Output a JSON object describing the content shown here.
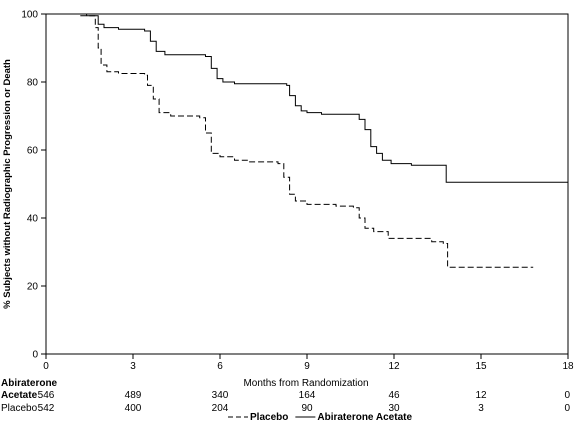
{
  "chart_data": {
    "type": "line",
    "xlabel": "Months from Randomization",
    "ylabel": "% Subjects without Radiographic Progression or Death",
    "xlim": [
      0,
      18
    ],
    "ylim": [
      0,
      100
    ],
    "x_ticks": [
      "0",
      "3",
      "6",
      "9",
      "12",
      "15",
      "18"
    ],
    "y_ticks": [
      "0",
      "20",
      "40",
      "60",
      "80",
      "100"
    ],
    "grid": false,
    "series": [
      {
        "name": "Abiraterone Acetate",
        "style": "solid",
        "points": [
          [
            0,
            100
          ],
          [
            1.4,
            99.5
          ],
          [
            1.8,
            97
          ],
          [
            2.0,
            96
          ],
          [
            2.5,
            95.5
          ],
          [
            3.4,
            95
          ],
          [
            3.6,
            92
          ],
          [
            3.8,
            89
          ],
          [
            4.1,
            88
          ],
          [
            5.5,
            87.5
          ],
          [
            5.7,
            84
          ],
          [
            5.9,
            81
          ],
          [
            6.1,
            80
          ],
          [
            6.5,
            79.5
          ],
          [
            8.3,
            79
          ],
          [
            8.4,
            76
          ],
          [
            8.6,
            73
          ],
          [
            8.8,
            71.5
          ],
          [
            9.0,
            71
          ],
          [
            9.5,
            70.5
          ],
          [
            10.6,
            70.5
          ],
          [
            10.8,
            69
          ],
          [
            11.0,
            66
          ],
          [
            11.2,
            61
          ],
          [
            11.4,
            59
          ],
          [
            11.6,
            57
          ],
          [
            11.9,
            56
          ],
          [
            12.6,
            55.5
          ],
          [
            13.7,
            55.5
          ],
          [
            13.8,
            50.5
          ],
          [
            18.0,
            50.5
          ]
        ]
      },
      {
        "name": "Placebo",
        "style": "dashed",
        "points": [
          [
            0,
            100
          ],
          [
            1.2,
            99.5
          ],
          [
            1.7,
            96
          ],
          [
            1.8,
            90
          ],
          [
            1.9,
            85
          ],
          [
            2.1,
            83
          ],
          [
            2.5,
            82.5
          ],
          [
            3.4,
            82
          ],
          [
            3.5,
            79
          ],
          [
            3.7,
            75
          ],
          [
            3.9,
            71
          ],
          [
            4.3,
            70
          ],
          [
            5.3,
            69.5
          ],
          [
            5.5,
            65
          ],
          [
            5.7,
            59
          ],
          [
            6.0,
            58
          ],
          [
            6.5,
            57
          ],
          [
            7.0,
            56.5
          ],
          [
            8.0,
            56
          ],
          [
            8.2,
            52
          ],
          [
            8.4,
            47
          ],
          [
            8.6,
            45
          ],
          [
            9.0,
            44
          ],
          [
            10.0,
            43.5
          ],
          [
            10.6,
            43
          ],
          [
            10.8,
            40
          ],
          [
            11.0,
            37
          ],
          [
            11.3,
            36
          ],
          [
            11.8,
            34
          ],
          [
            13.3,
            33
          ],
          [
            13.7,
            32.5
          ],
          [
            13.85,
            25.5
          ],
          [
            16.8,
            25.5
          ]
        ]
      }
    ],
    "risk_table": {
      "header_label": "Abiraterone",
      "rows": [
        {
          "label": "Acetate",
          "values": [
            "546",
            "489",
            "340",
            "164",
            "46",
            "12",
            "0"
          ]
        },
        {
          "label": "Placebo",
          "values": [
            "542",
            "400",
            "204",
            "90",
            "30",
            "3",
            "0"
          ]
        }
      ]
    },
    "legend": {
      "position": "bottom",
      "entries": [
        {
          "label": "Placebo",
          "style": "dashed"
        },
        {
          "label": "Abiraterone Acetate",
          "style": "solid"
        }
      ]
    }
  }
}
